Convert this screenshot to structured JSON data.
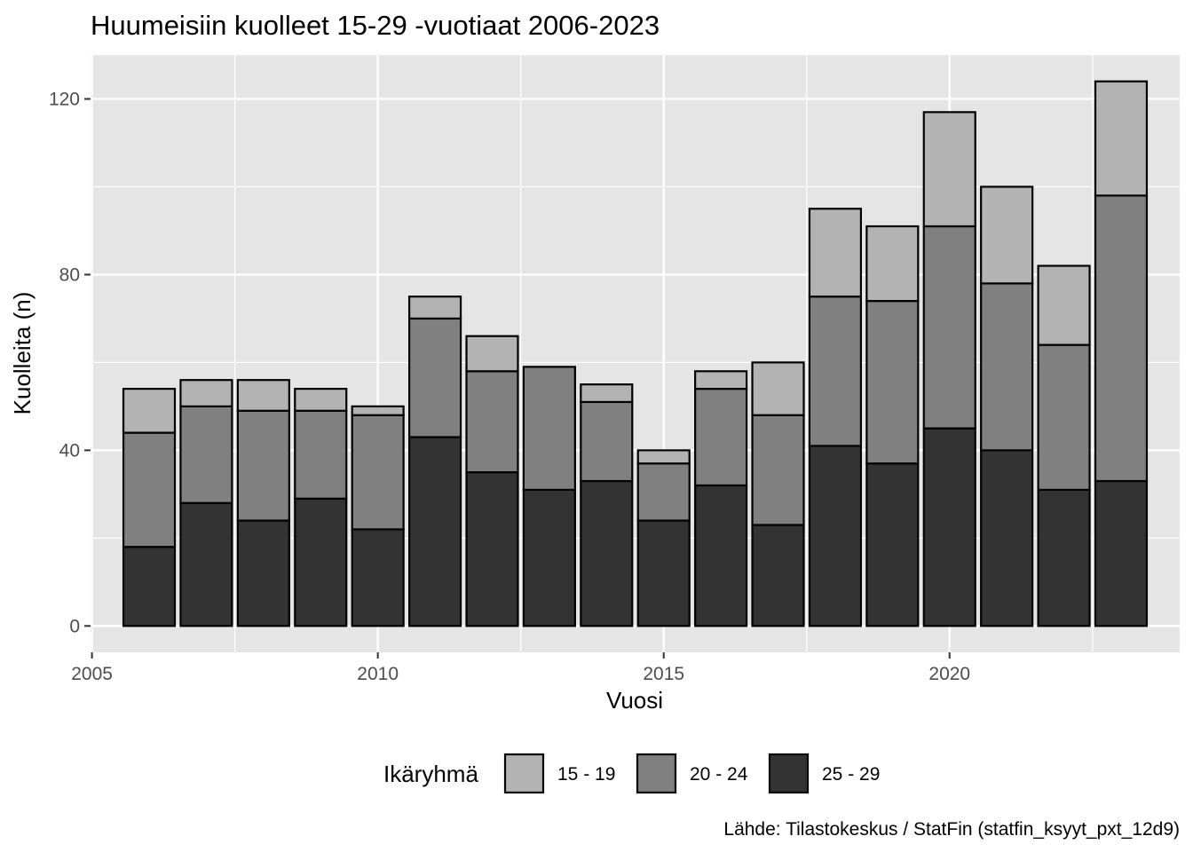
{
  "chart_data": {
    "type": "bar",
    "stacked": true,
    "title": "Huumeisiin kuolleet 15-29 -vuotiaat 2006-2023",
    "xlabel": "Vuosi",
    "ylabel": "Kuolleita (n)",
    "caption": "Lähde: Tilastokeskus / StatFin (statfin_ksyyt_pxt_12d9)",
    "legend_title": "Ikäryhmä",
    "legend_position": "bottom",
    "grid": true,
    "xlim": [
      2005.5,
      2023.5
    ],
    "ylim": [
      -6,
      130
    ],
    "x_ticks": [
      2005,
      2010,
      2015,
      2020
    ],
    "x_tick_labels": [
      "2005",
      "2010",
      "2015",
      "2020"
    ],
    "y_ticks": [
      0,
      40,
      80,
      120
    ],
    "y_tick_labels": [
      "0",
      "40",
      "80",
      "120"
    ],
    "x": [
      2006,
      2007,
      2008,
      2009,
      2010,
      2011,
      2012,
      2013,
      2014,
      2015,
      2016,
      2017,
      2018,
      2019,
      2020,
      2021,
      2022,
      2023
    ],
    "series": [
      {
        "name": "25 - 29",
        "color": "#333333",
        "values": [
          18,
          28,
          24,
          29,
          22,
          43,
          35,
          31,
          33,
          24,
          32,
          23,
          41,
          37,
          45,
          40,
          31,
          33
        ]
      },
      {
        "name": "20 - 24",
        "color": "#808080",
        "values": [
          26,
          22,
          25,
          20,
          26,
          27,
          23,
          28,
          18,
          13,
          22,
          25,
          34,
          37,
          46,
          38,
          33,
          65
        ]
      },
      {
        "name": "15 - 19",
        "color": "#b3b3b3",
        "values": [
          10,
          6,
          7,
          5,
          2,
          5,
          8,
          0,
          4,
          3,
          4,
          12,
          20,
          17,
          26,
          22,
          18,
          26
        ]
      }
    ],
    "legend_order": [
      "15 - 19",
      "20 - 24",
      "25 - 29"
    ]
  }
}
